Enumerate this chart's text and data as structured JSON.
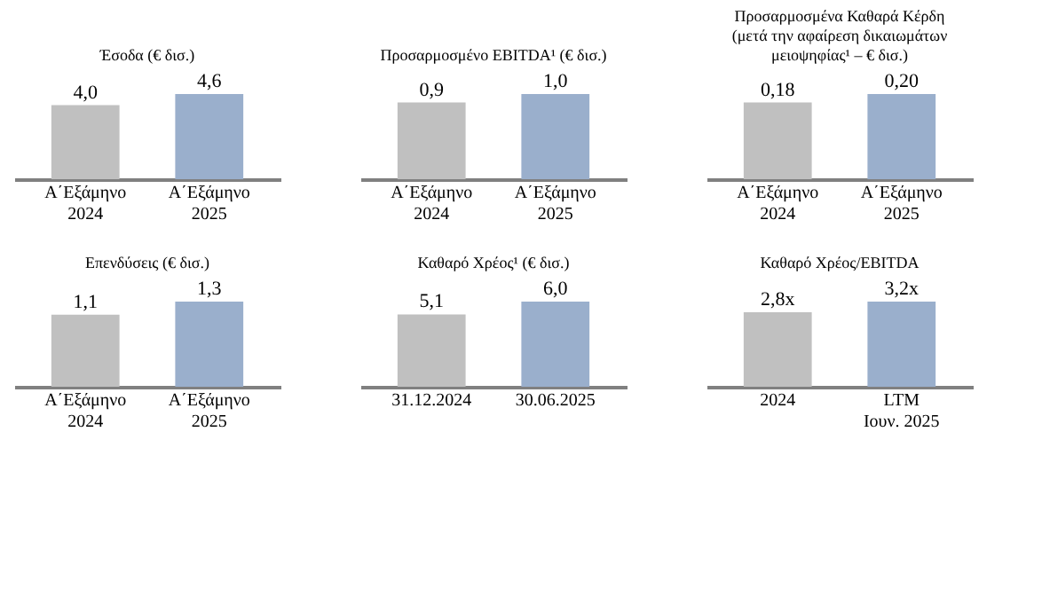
{
  "chart_data": [
    {
      "type": "bar",
      "title": "Έσοδα (€ δισ.)",
      "categories": [
        "Α΄Εξάμηνο\n2024",
        "Α΄Εξάμηνο\n2025"
      ],
      "values": [
        4.0,
        4.6
      ],
      "value_labels": [
        "4,0",
        "4,6"
      ],
      "colors": [
        "#c0c0c0",
        "#9aafcc"
      ],
      "tick_labels": "x",
      "grid": false
    },
    {
      "type": "bar",
      "title": "Προσαρμοσμένο EBITDA¹ (€ δισ.)",
      "categories": [
        "Α΄Εξάμηνο\n2024",
        "Α΄Εξάμηνο\n2025"
      ],
      "values": [
        0.9,
        1.0
      ],
      "value_labels": [
        "0,9",
        "1,0"
      ],
      "colors": [
        "#c0c0c0",
        "#9aafcc"
      ],
      "tick_labels": "x",
      "grid": false
    },
    {
      "type": "bar",
      "title": "Προσαρμοσμένα Καθαρά Κέρδη\n(μετά την αφαίρεση δικαιωμάτων\nμειοψηφίας¹ – € δισ.)",
      "categories": [
        "Α΄Εξάμηνο\n2024",
        "Α΄Εξάμηνο\n2025"
      ],
      "values": [
        0.18,
        0.2
      ],
      "value_labels": [
        "0,18",
        "0,20"
      ],
      "colors": [
        "#c0c0c0",
        "#9aafcc"
      ],
      "tick_labels": "x",
      "grid": false
    },
    {
      "type": "bar",
      "title": "Επενδύσεις (€ δισ.)",
      "categories": [
        "Α΄Εξάμηνο\n2024",
        "Α΄Εξάμηνο\n2025"
      ],
      "values": [
        1.1,
        1.3
      ],
      "value_labels": [
        "1,1",
        "1,3"
      ],
      "colors": [
        "#c0c0c0",
        "#9aafcc"
      ],
      "tick_labels": "x",
      "grid": false
    },
    {
      "type": "bar",
      "title": "Καθαρό Χρέος¹ (€ δισ.)",
      "categories": [
        "31.12.2024",
        "30.06.2025"
      ],
      "values": [
        5.1,
        6.0
      ],
      "value_labels": [
        "5,1",
        "6,0"
      ],
      "colors": [
        "#c0c0c0",
        "#9aafcc"
      ],
      "tick_labels": "x",
      "grid": false
    },
    {
      "type": "bar",
      "title": "Καθαρό Χρέος/EBITDA",
      "categories": [
        "2024",
        "LTM\nΙουν. 2025"
      ],
      "values": [
        2.8,
        3.2
      ],
      "value_labels": [
        "2,8x",
        "3,2x"
      ],
      "colors": [
        "#c0c0c0",
        "#9aafcc"
      ],
      "tick_labels": "x",
      "grid": false
    }
  ]
}
